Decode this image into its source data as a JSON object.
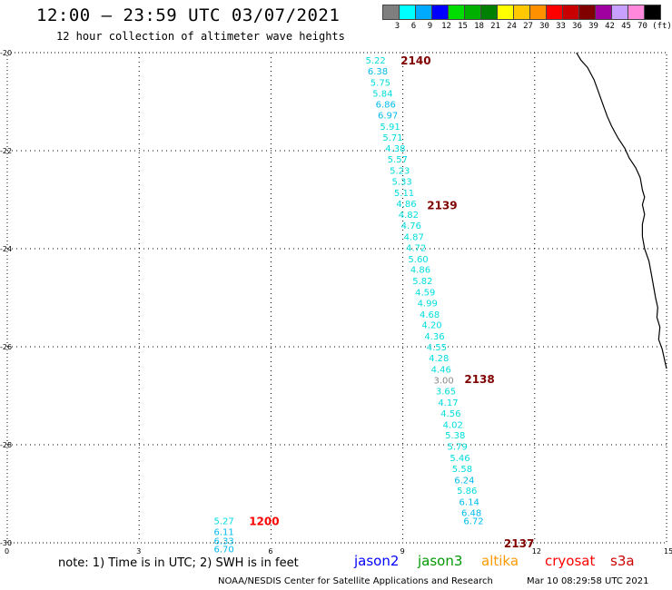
{
  "header": {
    "title": "12:00 – 23:59 UTC 03/07/2021",
    "subtitle": "12 hour collection of altimeter wave heights"
  },
  "legend": {
    "unit": "(ft)",
    "swatches": [
      {
        "color": "#7f7f7f",
        "label": "3"
      },
      {
        "color": "#00ffff",
        "label": "6"
      },
      {
        "color": "#00aaff",
        "label": "9"
      },
      {
        "color": "#0000ff",
        "label": "12"
      },
      {
        "color": "#00dd00",
        "label": "15"
      },
      {
        "color": "#00b000",
        "label": "18"
      },
      {
        "color": "#008000",
        "label": "21"
      },
      {
        "color": "#ffff00",
        "label": "24"
      },
      {
        "color": "#ffc800",
        "label": "27"
      },
      {
        "color": "#ff9000",
        "label": "30"
      },
      {
        "color": "#ff0000",
        "label": "33"
      },
      {
        "color": "#c80000",
        "label": "36"
      },
      {
        "color": "#800000",
        "label": "39"
      },
      {
        "color": "#a000a0",
        "label": "42"
      },
      {
        "color": "#c8a0ff",
        "label": "45"
      },
      {
        "color": "#ff88dd",
        "label": "70"
      },
      {
        "color": "#000000",
        "label": ""
      }
    ]
  },
  "map": {
    "y_ticks": [
      "-20",
      "-22",
      "-24",
      "-26",
      "-28",
      "-30"
    ],
    "x_ticks": [
      "0",
      "3",
      "6",
      "9",
      "12",
      "15"
    ],
    "pass_labels": [
      {
        "text": "2140",
        "lon": 8.95,
        "lat": -20.15,
        "color": "#800000"
      },
      {
        "text": "2139",
        "lon": 9.55,
        "lat": -23.1,
        "color": "#800000"
      },
      {
        "text": "2138",
        "lon": 10.4,
        "lat": -26.65,
        "color": "#800000"
      },
      {
        "text": "2137",
        "lon": 11.3,
        "lat": -30.0,
        "color": "#800000"
      },
      {
        "text": "1200",
        "lon": 5.5,
        "lat": -29.55,
        "color": "#ff0000"
      }
    ],
    "track_values": [
      {
        "t": "5.22",
        "lon": 8.15,
        "lat": -20.15,
        "c": "#00dddd"
      },
      {
        "t": "6.38",
        "lon": 8.2,
        "lat": -20.37,
        "c": "#00bbee"
      },
      {
        "t": "5.75",
        "lon": 8.26,
        "lat": -20.6,
        "c": "#00dddd"
      },
      {
        "t": "5.84",
        "lon": 8.31,
        "lat": -20.82,
        "c": "#00dddd"
      },
      {
        "t": "6.86",
        "lon": 8.38,
        "lat": -21.05,
        "c": "#00bbee"
      },
      {
        "t": "6.97",
        "lon": 8.43,
        "lat": -21.27,
        "c": "#00bbee"
      },
      {
        "t": "5.91",
        "lon": 8.48,
        "lat": -21.5,
        "c": "#00dddd"
      },
      {
        "t": "5.71",
        "lon": 8.54,
        "lat": -21.72,
        "c": "#00dddd"
      },
      {
        "t": "4.38",
        "lon": 8.6,
        "lat": -21.94,
        "c": "#00dddd"
      },
      {
        "t": "5.57",
        "lon": 8.65,
        "lat": -22.17,
        "c": "#00dddd"
      },
      {
        "t": "5.23",
        "lon": 8.7,
        "lat": -22.4,
        "c": "#00dddd"
      },
      {
        "t": "5.33",
        "lon": 8.75,
        "lat": -22.62,
        "c": "#00dddd"
      },
      {
        "t": "5.11",
        "lon": 8.8,
        "lat": -22.85,
        "c": "#00dddd"
      },
      {
        "t": "4.86",
        "lon": 8.85,
        "lat": -23.07,
        "c": "#00dddd"
      },
      {
        "t": "4.82",
        "lon": 8.9,
        "lat": -23.3,
        "c": "#00dddd"
      },
      {
        "t": "4.76",
        "lon": 8.96,
        "lat": -23.52,
        "c": "#00dddd"
      },
      {
        "t": "4.87",
        "lon": 9.02,
        "lat": -23.75,
        "c": "#00dddd"
      },
      {
        "t": "4.72",
        "lon": 9.07,
        "lat": -23.97,
        "c": "#00dddd"
      },
      {
        "t": "5.60",
        "lon": 9.12,
        "lat": -24.2,
        "c": "#00dddd"
      },
      {
        "t": "4.86",
        "lon": 9.17,
        "lat": -24.42,
        "c": "#00dddd"
      },
      {
        "t": "5.82",
        "lon": 9.22,
        "lat": -24.65,
        "c": "#00dddd"
      },
      {
        "t": "4.59",
        "lon": 9.28,
        "lat": -24.88,
        "c": "#00dddd"
      },
      {
        "t": "4.99",
        "lon": 9.33,
        "lat": -25.1,
        "c": "#00dddd"
      },
      {
        "t": "4.68",
        "lon": 9.38,
        "lat": -25.33,
        "c": "#00dddd"
      },
      {
        "t": "4.20",
        "lon": 9.43,
        "lat": -25.55,
        "c": "#00dddd"
      },
      {
        "t": "4.36",
        "lon": 9.49,
        "lat": -25.78,
        "c": "#00dddd"
      },
      {
        "t": "4.55",
        "lon": 9.54,
        "lat": -26.0,
        "c": "#00dddd"
      },
      {
        "t": "4.28",
        "lon": 9.59,
        "lat": -26.22,
        "c": "#00dddd"
      },
      {
        "t": "4.46",
        "lon": 9.64,
        "lat": -26.45,
        "c": "#00dddd"
      },
      {
        "t": "3.00",
        "lon": 9.7,
        "lat": -26.68,
        "c": "#888888"
      },
      {
        "t": "3.65",
        "lon": 9.75,
        "lat": -26.9,
        "c": "#00dddd"
      },
      {
        "t": "4.17",
        "lon": 9.8,
        "lat": -27.13,
        "c": "#00dddd"
      },
      {
        "t": "4.56",
        "lon": 9.86,
        "lat": -27.35,
        "c": "#00dddd"
      },
      {
        "t": "4.02",
        "lon": 9.91,
        "lat": -27.58,
        "c": "#00dddd"
      },
      {
        "t": "5.38",
        "lon": 9.96,
        "lat": -27.8,
        "c": "#00dddd"
      },
      {
        "t": "5.79",
        "lon": 10.01,
        "lat": -28.03,
        "c": "#00dddd"
      },
      {
        "t": "5.46",
        "lon": 10.07,
        "lat": -28.26,
        "c": "#00dddd"
      },
      {
        "t": "5.58",
        "lon": 10.12,
        "lat": -28.48,
        "c": "#00dddd"
      },
      {
        "t": "6.24",
        "lon": 10.17,
        "lat": -28.71,
        "c": "#00bbee"
      },
      {
        "t": "5.86",
        "lon": 10.23,
        "lat": -28.93,
        "c": "#00dddd"
      },
      {
        "t": "6.14",
        "lon": 10.28,
        "lat": -29.16,
        "c": "#00bbee"
      },
      {
        "t": "6.48",
        "lon": 10.33,
        "lat": -29.38,
        "c": "#00bbee"
      },
      {
        "t": "6.72",
        "lon": 10.38,
        "lat": -29.55,
        "c": "#00bbee"
      },
      {
        "t": "5.27",
        "lon": 4.7,
        "lat": -29.55,
        "c": "#00dddd"
      },
      {
        "t": "6.11",
        "lon": 4.7,
        "lat": -29.77,
        "c": "#00bbee"
      },
      {
        "t": "6.33",
        "lon": 4.7,
        "lat": -29.95,
        "c": "#00bbee"
      },
      {
        "t": "6.70",
        "lon": 4.7,
        "lat": -30.12,
        "c": "#00bbee"
      }
    ],
    "coastline": [
      [
        12.95,
        -20.0
      ],
      [
        13.05,
        -20.15
      ],
      [
        13.2,
        -20.3
      ],
      [
        13.35,
        -20.55
      ],
      [
        13.45,
        -20.8
      ],
      [
        13.55,
        -21.05
      ],
      [
        13.65,
        -21.3
      ],
      [
        13.75,
        -21.5
      ],
      [
        13.9,
        -21.75
      ],
      [
        14.05,
        -21.95
      ],
      [
        14.15,
        -22.15
      ],
      [
        14.3,
        -22.35
      ],
      [
        14.4,
        -22.55
      ],
      [
        14.45,
        -22.8
      ],
      [
        14.5,
        -22.95
      ],
      [
        14.45,
        -23.1
      ],
      [
        14.5,
        -23.3
      ],
      [
        14.45,
        -23.5
      ],
      [
        14.45,
        -23.75
      ],
      [
        14.5,
        -24.0
      ],
      [
        14.6,
        -24.25
      ],
      [
        14.65,
        -24.5
      ],
      [
        14.7,
        -24.75
      ],
      [
        14.75,
        -25.0
      ],
      [
        14.8,
        -25.2
      ],
      [
        14.78,
        -25.4
      ],
      [
        14.85,
        -25.6
      ],
      [
        14.82,
        -25.85
      ],
      [
        14.9,
        -26.05
      ],
      [
        14.95,
        -26.25
      ],
      [
        15.0,
        -26.45
      ]
    ]
  },
  "footer": {
    "note": "note: 1) Time is in UTC; 2) SWH is in feet",
    "satellites": [
      {
        "name": "jason2",
        "color": "#0000ff"
      },
      {
        "name": "jason3",
        "color": "#009900"
      },
      {
        "name": "altika",
        "color": "#ff9900"
      },
      {
        "name": "cryosat",
        "color": "#ff0000"
      },
      {
        "name": "s3a",
        "color": "#cc0000"
      }
    ],
    "credit": "NOAA/NESDIS Center for Satellite Applications and Research",
    "timestamp": "Mar 10 08:29:58 UTC 2021"
  }
}
